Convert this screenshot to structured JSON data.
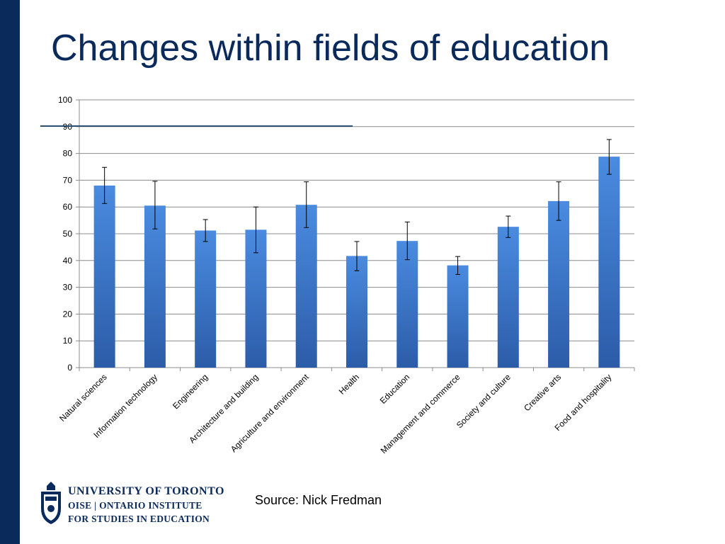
{
  "slide": {
    "title": "Changes within fields of education",
    "source": "Source: Nick Fredman"
  },
  "logo": {
    "line1": "UNIVERSITY OF TORONTO",
    "line2": "OISE | ONTARIO INSTITUTE",
    "line3": "FOR STUDIES IN EDUCATION"
  },
  "colors": {
    "sidebar": "#0b2a5c",
    "title": "#0b2a5c",
    "bar_top": "#4a8be0",
    "bar_bottom": "#2c5ca8",
    "grid": "#8c8c8c"
  },
  "chart_data": {
    "type": "bar",
    "title": "",
    "xlabel": "",
    "ylabel": "",
    "ylim": [
      0,
      100
    ],
    "yticks": [
      0,
      10,
      20,
      30,
      40,
      50,
      60,
      70,
      80,
      90,
      100
    ],
    "grid": true,
    "legend": "none",
    "categories": [
      "Natural sciences",
      "Information technology",
      "Engineering",
      "Architecture and building",
      "Agriculture and environment",
      "Health",
      "Education",
      "Management and commerce",
      "Society and culture",
      "Creative arts",
      "Food and hospitality"
    ],
    "values": [
      68,
      60.5,
      51.2,
      51.5,
      60.8,
      41.7,
      47.3,
      38.2,
      52.6,
      62.2,
      78.8
    ],
    "error_low": [
      61.3,
      51.8,
      47.1,
      42.9,
      52.3,
      36.2,
      40.3,
      34.8,
      48.6,
      55.0,
      72.2
    ],
    "error_high": [
      74.8,
      69.6,
      55.3,
      60.0,
      69.4,
      47.1,
      54.4,
      41.5,
      56.6,
      69.4,
      85.2
    ]
  }
}
